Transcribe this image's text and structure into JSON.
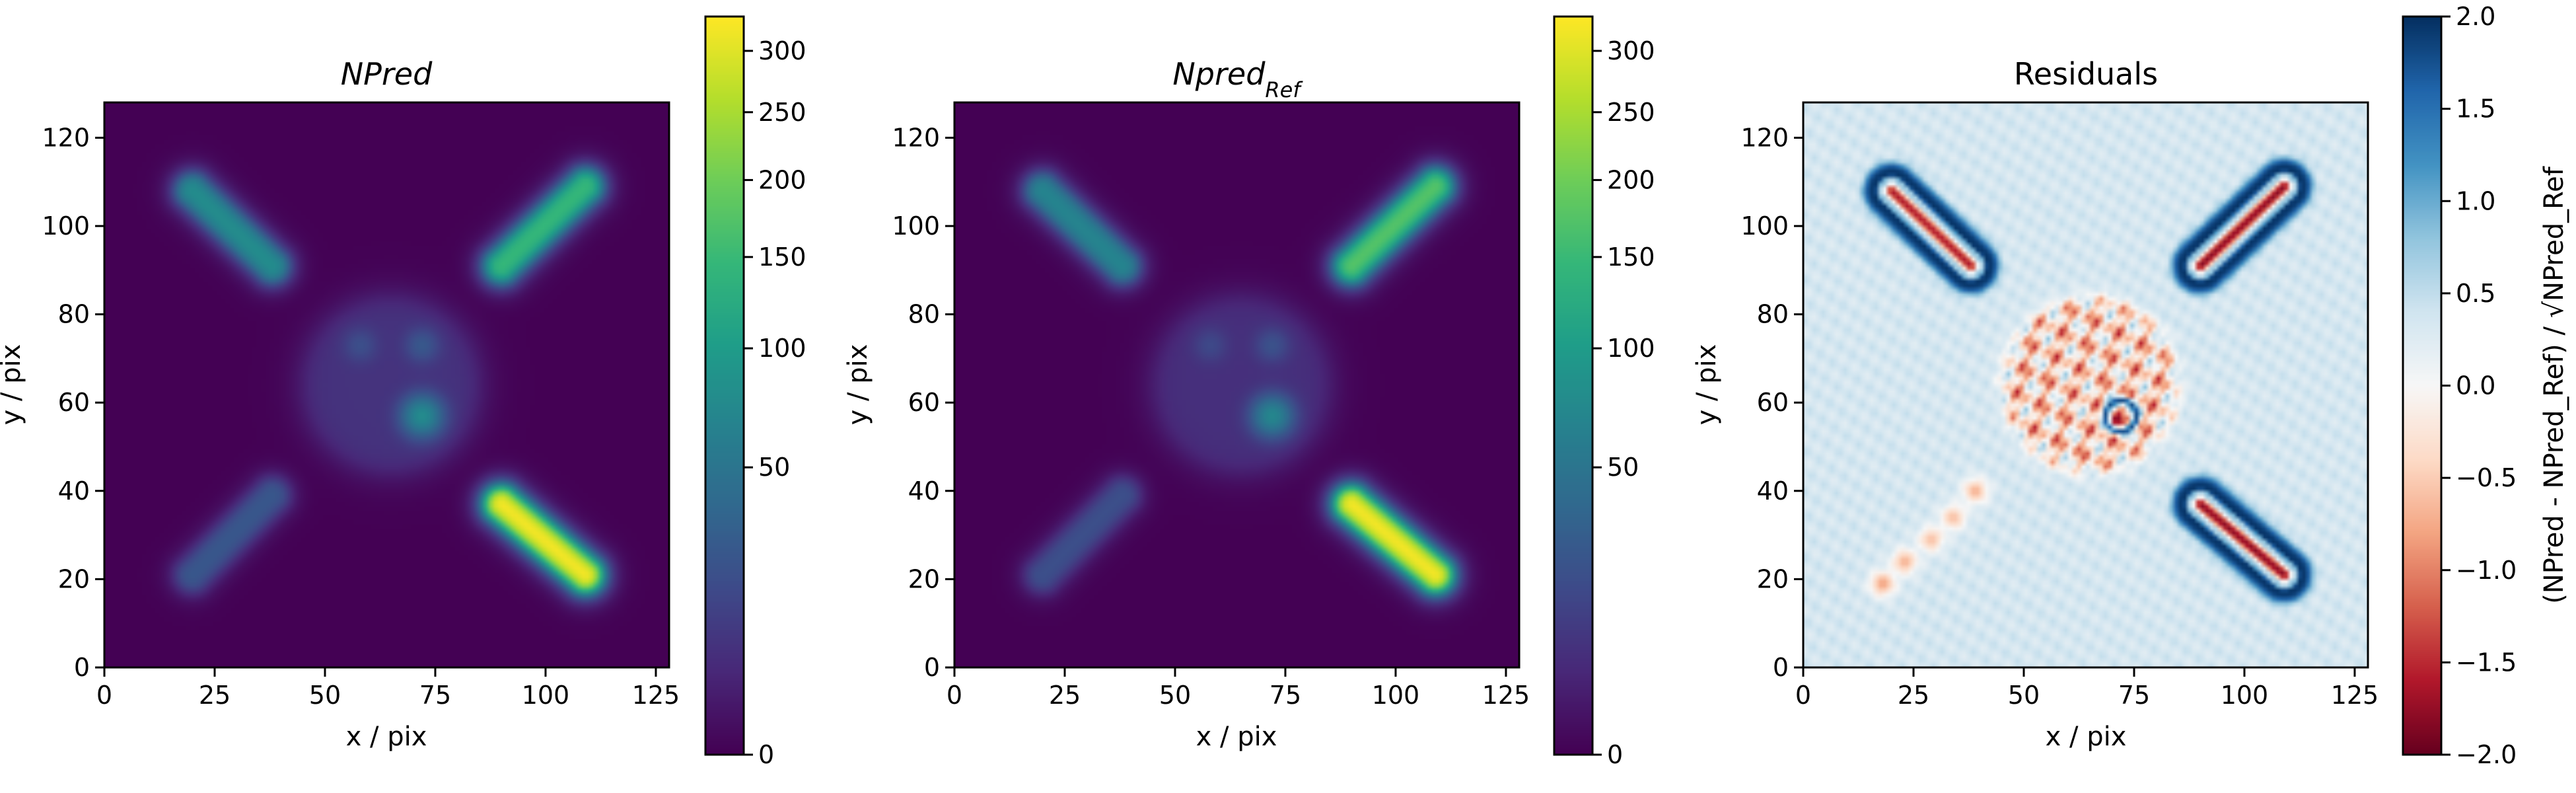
{
  "chart_data": [
    {
      "type": "heatmap",
      "panel": "npred",
      "title": "NPred",
      "xlabel": "x / pix",
      "ylabel": "y / pix",
      "xlim": [
        0,
        128
      ],
      "ylim": [
        0,
        128
      ],
      "xticks": [
        "0",
        "25",
        "50",
        "75",
        "100",
        "125"
      ],
      "yticks": [
        "0",
        "20",
        "40",
        "60",
        "80",
        "100",
        "120"
      ],
      "colormap": "viridis",
      "colorbar": {
        "scale": "sqrt",
        "range": [
          0,
          330
        ],
        "ticks": [
          "0",
          "50",
          "100",
          "150",
          "200",
          "250",
          "300"
        ]
      },
      "features": [
        {
          "shape": "bar",
          "from": [
            20,
            108
          ],
          "to": [
            38,
            91
          ],
          "peak": 80
        },
        {
          "shape": "bar",
          "from": [
            90,
            91
          ],
          "to": [
            109,
            109
          ],
          "peak": 150
        },
        {
          "shape": "bar",
          "from": [
            20,
            21
          ],
          "to": [
            38,
            39
          ],
          "peak": 25
        },
        {
          "shape": "bar",
          "from": [
            90,
            37
          ],
          "to": [
            109,
            21
          ],
          "peak": 330
        },
        {
          "shape": "disk",
          "center": [
            65,
            64
          ],
          "radius": 19,
          "peak": 7
        },
        {
          "shape": "blob",
          "center": [
            72,
            57
          ],
          "radius": 3,
          "peak": 70
        },
        {
          "shape": "blob",
          "center": [
            72,
            73
          ],
          "radius": 2.5,
          "peak": 18
        },
        {
          "shape": "blob",
          "center": [
            58,
            73
          ],
          "radius": 2.5,
          "peak": 12
        }
      ]
    },
    {
      "type": "heatmap",
      "panel": "npred_ref",
      "title": "Npred",
      "title_subscript": "Ref",
      "xlabel": "x / pix",
      "ylabel": "y / pix",
      "xlim": [
        0,
        128
      ],
      "ylim": [
        0,
        128
      ],
      "xticks": [
        "0",
        "25",
        "50",
        "75",
        "100",
        "125"
      ],
      "yticks": [
        "0",
        "20",
        "40",
        "60",
        "80",
        "100",
        "120"
      ],
      "colormap": "viridis",
      "colorbar": {
        "scale": "sqrt",
        "range": [
          0,
          330
        ],
        "ticks": [
          "0",
          "50",
          "100",
          "150",
          "200",
          "250",
          "300"
        ]
      },
      "features": [
        {
          "shape": "bar",
          "from": [
            20,
            108
          ],
          "to": [
            38,
            91
          ],
          "peak": 70
        },
        {
          "shape": "bar",
          "from": [
            90,
            91
          ],
          "to": [
            109,
            109
          ],
          "peak": 180
        },
        {
          "shape": "bar",
          "from": [
            20,
            21
          ],
          "to": [
            38,
            39
          ],
          "peak": 20
        },
        {
          "shape": "bar",
          "from": [
            90,
            37
          ],
          "to": [
            109,
            21
          ],
          "peak": 330
        },
        {
          "shape": "disk",
          "center": [
            65,
            64
          ],
          "radius": 19,
          "peak": 6
        },
        {
          "shape": "blob",
          "center": [
            72,
            57
          ],
          "radius": 3,
          "peak": 65
        },
        {
          "shape": "blob",
          "center": [
            72,
            73
          ],
          "radius": 2.5,
          "peak": 15
        },
        {
          "shape": "blob",
          "center": [
            58,
            73
          ],
          "radius": 2.5,
          "peak": 10
        }
      ]
    },
    {
      "type": "heatmap",
      "panel": "residuals",
      "title": "Residuals",
      "xlabel": "x / pix",
      "ylabel": "y / pix",
      "xlim": [
        0,
        128
      ],
      "ylim": [
        0,
        128
      ],
      "xticks": [
        "0",
        "25",
        "50",
        "75",
        "100",
        "125"
      ],
      "yticks": [
        "0",
        "20",
        "40",
        "60",
        "80",
        "100",
        "120"
      ],
      "colormap": "RdBu",
      "colorbar": {
        "scale": "linear",
        "range": [
          -2,
          2
        ],
        "ticks": [
          "−2.0",
          "−1.5",
          "−1.0",
          "−0.5",
          "0.0",
          "0.5",
          "1.0",
          "1.5",
          "2.0"
        ],
        "label": "(NPred - NPred_Ref) / √NPred_Ref"
      },
      "background_value": 0.35,
      "features": [
        {
          "shape": "bar_halo",
          "from": [
            20,
            108
          ],
          "to": [
            38,
            91
          ],
          "core": -1.8,
          "halo": 2.0
        },
        {
          "shape": "bar_halo",
          "from": [
            90,
            91
          ],
          "to": [
            109,
            109
          ],
          "core": -2.0,
          "halo": 2.0
        },
        {
          "shape": "bar_halo",
          "from": [
            90,
            37
          ],
          "to": [
            109,
            21
          ],
          "core": -2.0,
          "halo": 2.0
        },
        {
          "shape": "blob",
          "center": [
            18,
            19
          ],
          "radius": 2.5,
          "value": -0.8
        },
        {
          "shape": "blob",
          "center": [
            23,
            24
          ],
          "radius": 2.5,
          "value": -0.7
        },
        {
          "shape": "blob",
          "center": [
            29,
            29
          ],
          "radius": 2.5,
          "value": -0.6
        },
        {
          "shape": "blob",
          "center": [
            34,
            34
          ],
          "radius": 2.5,
          "value": -0.6
        },
        {
          "shape": "blob",
          "center": [
            39,
            40
          ],
          "radius": 2.5,
          "value": -0.7
        },
        {
          "shape": "disk",
          "center": [
            65,
            64
          ],
          "radius": 20,
          "value": -0.4
        },
        {
          "shape": "ring",
          "center": [
            72,
            57
          ],
          "radius": 3.5,
          "value": 1.8
        },
        {
          "shape": "blob",
          "center": [
            71,
            56
          ],
          "radius": 1.2,
          "value": -2.0
        }
      ]
    }
  ]
}
